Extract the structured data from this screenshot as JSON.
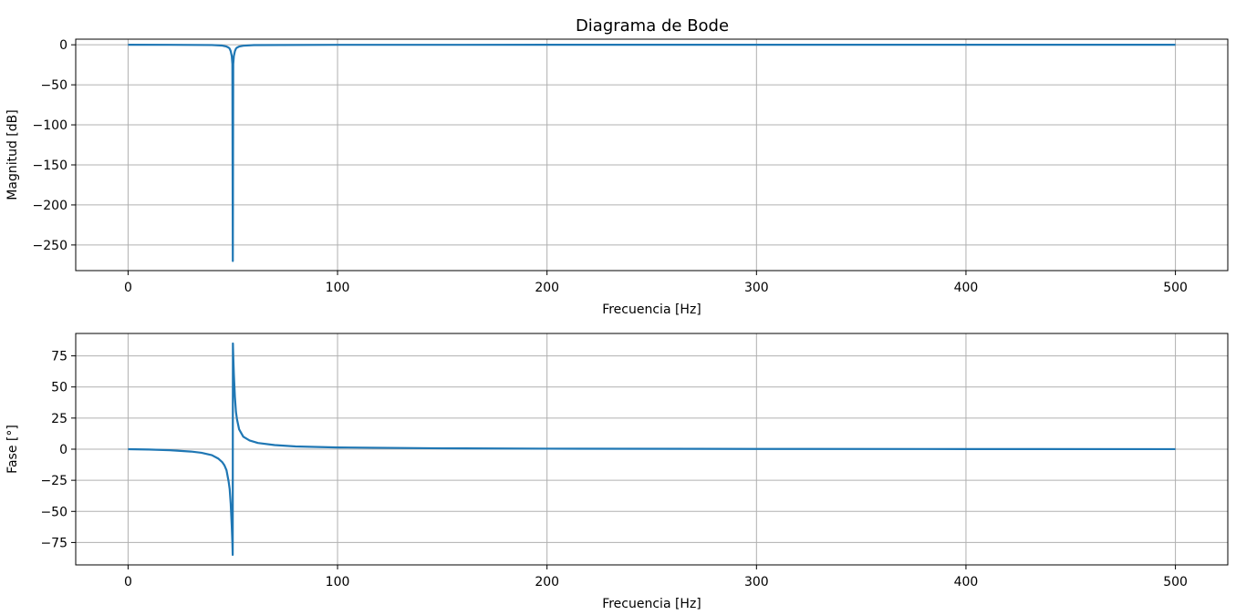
{
  "chart_data": [
    {
      "type": "line",
      "title": "Diagrama de Bode",
      "xlabel": "Frecuencia [Hz]",
      "ylabel": "Magnitud [dB]",
      "xlim": [
        -25,
        525
      ],
      "ylim": [
        -282,
        7
      ],
      "xticks": [
        0,
        100,
        200,
        300,
        400,
        500
      ],
      "yticks": [
        0,
        -50,
        -100,
        -150,
        -200,
        -250
      ],
      "ytick_labels": [
        "0",
        "−50",
        "−100",
        "−150",
        "−200",
        "−250"
      ],
      "grid": true,
      "color": "#1f77b4",
      "series": [
        {
          "x": [
            0,
            20,
            40,
            45,
            47,
            48,
            48.5,
            49,
            49.5,
            49.8,
            50,
            50.2,
            50.5,
            51,
            51.5,
            52,
            53,
            55,
            60,
            100,
            200,
            300,
            400,
            500
          ],
          "values": [
            0,
            -0.02,
            -0.3,
            -1.0,
            -2.2,
            -3.5,
            -4.8,
            -8,
            -14,
            -24,
            -270,
            -24,
            -14,
            -8,
            -4.8,
            -3.5,
            -2.2,
            -1.2,
            -0.4,
            -0.05,
            0,
            0,
            0,
            0
          ]
        }
      ]
    },
    {
      "type": "line",
      "title": "",
      "xlabel": "Frecuencia [Hz]",
      "ylabel": "Fase [°]",
      "xlim": [
        -25,
        525
      ],
      "ylim": [
        -93,
        93
      ],
      "xticks": [
        0,
        100,
        200,
        300,
        400,
        500
      ],
      "yticks": [
        75,
        50,
        25,
        0,
        -25,
        -50,
        -75
      ],
      "ytick_labels": [
        "75",
        "50",
        "25",
        "0",
        "−25",
        "−50",
        "−75"
      ],
      "grid": true,
      "color": "#1f77b4",
      "series": [
        {
          "x": [
            0,
            10,
            20,
            30,
            35,
            40,
            43,
            45,
            46,
            47,
            48,
            48.5,
            49,
            49.5,
            49.8,
            49.95,
            50.05,
            50.2,
            50.5,
            51,
            51.5,
            52,
            53,
            55,
            58,
            62,
            70,
            80,
            100,
            150,
            200,
            300,
            400,
            500
          ],
          "values": [
            0,
            -0.3,
            -0.8,
            -1.9,
            -2.9,
            -4.8,
            -7.5,
            -10.5,
            -13,
            -17,
            -26,
            -32,
            -44,
            -62,
            -75,
            -85,
            85,
            75,
            60,
            42,
            30,
            24,
            16,
            10,
            7,
            5,
            3.3,
            2.2,
            1.4,
            0.7,
            0.4,
            0.2,
            0.1,
            0.05
          ]
        }
      ]
    }
  ]
}
